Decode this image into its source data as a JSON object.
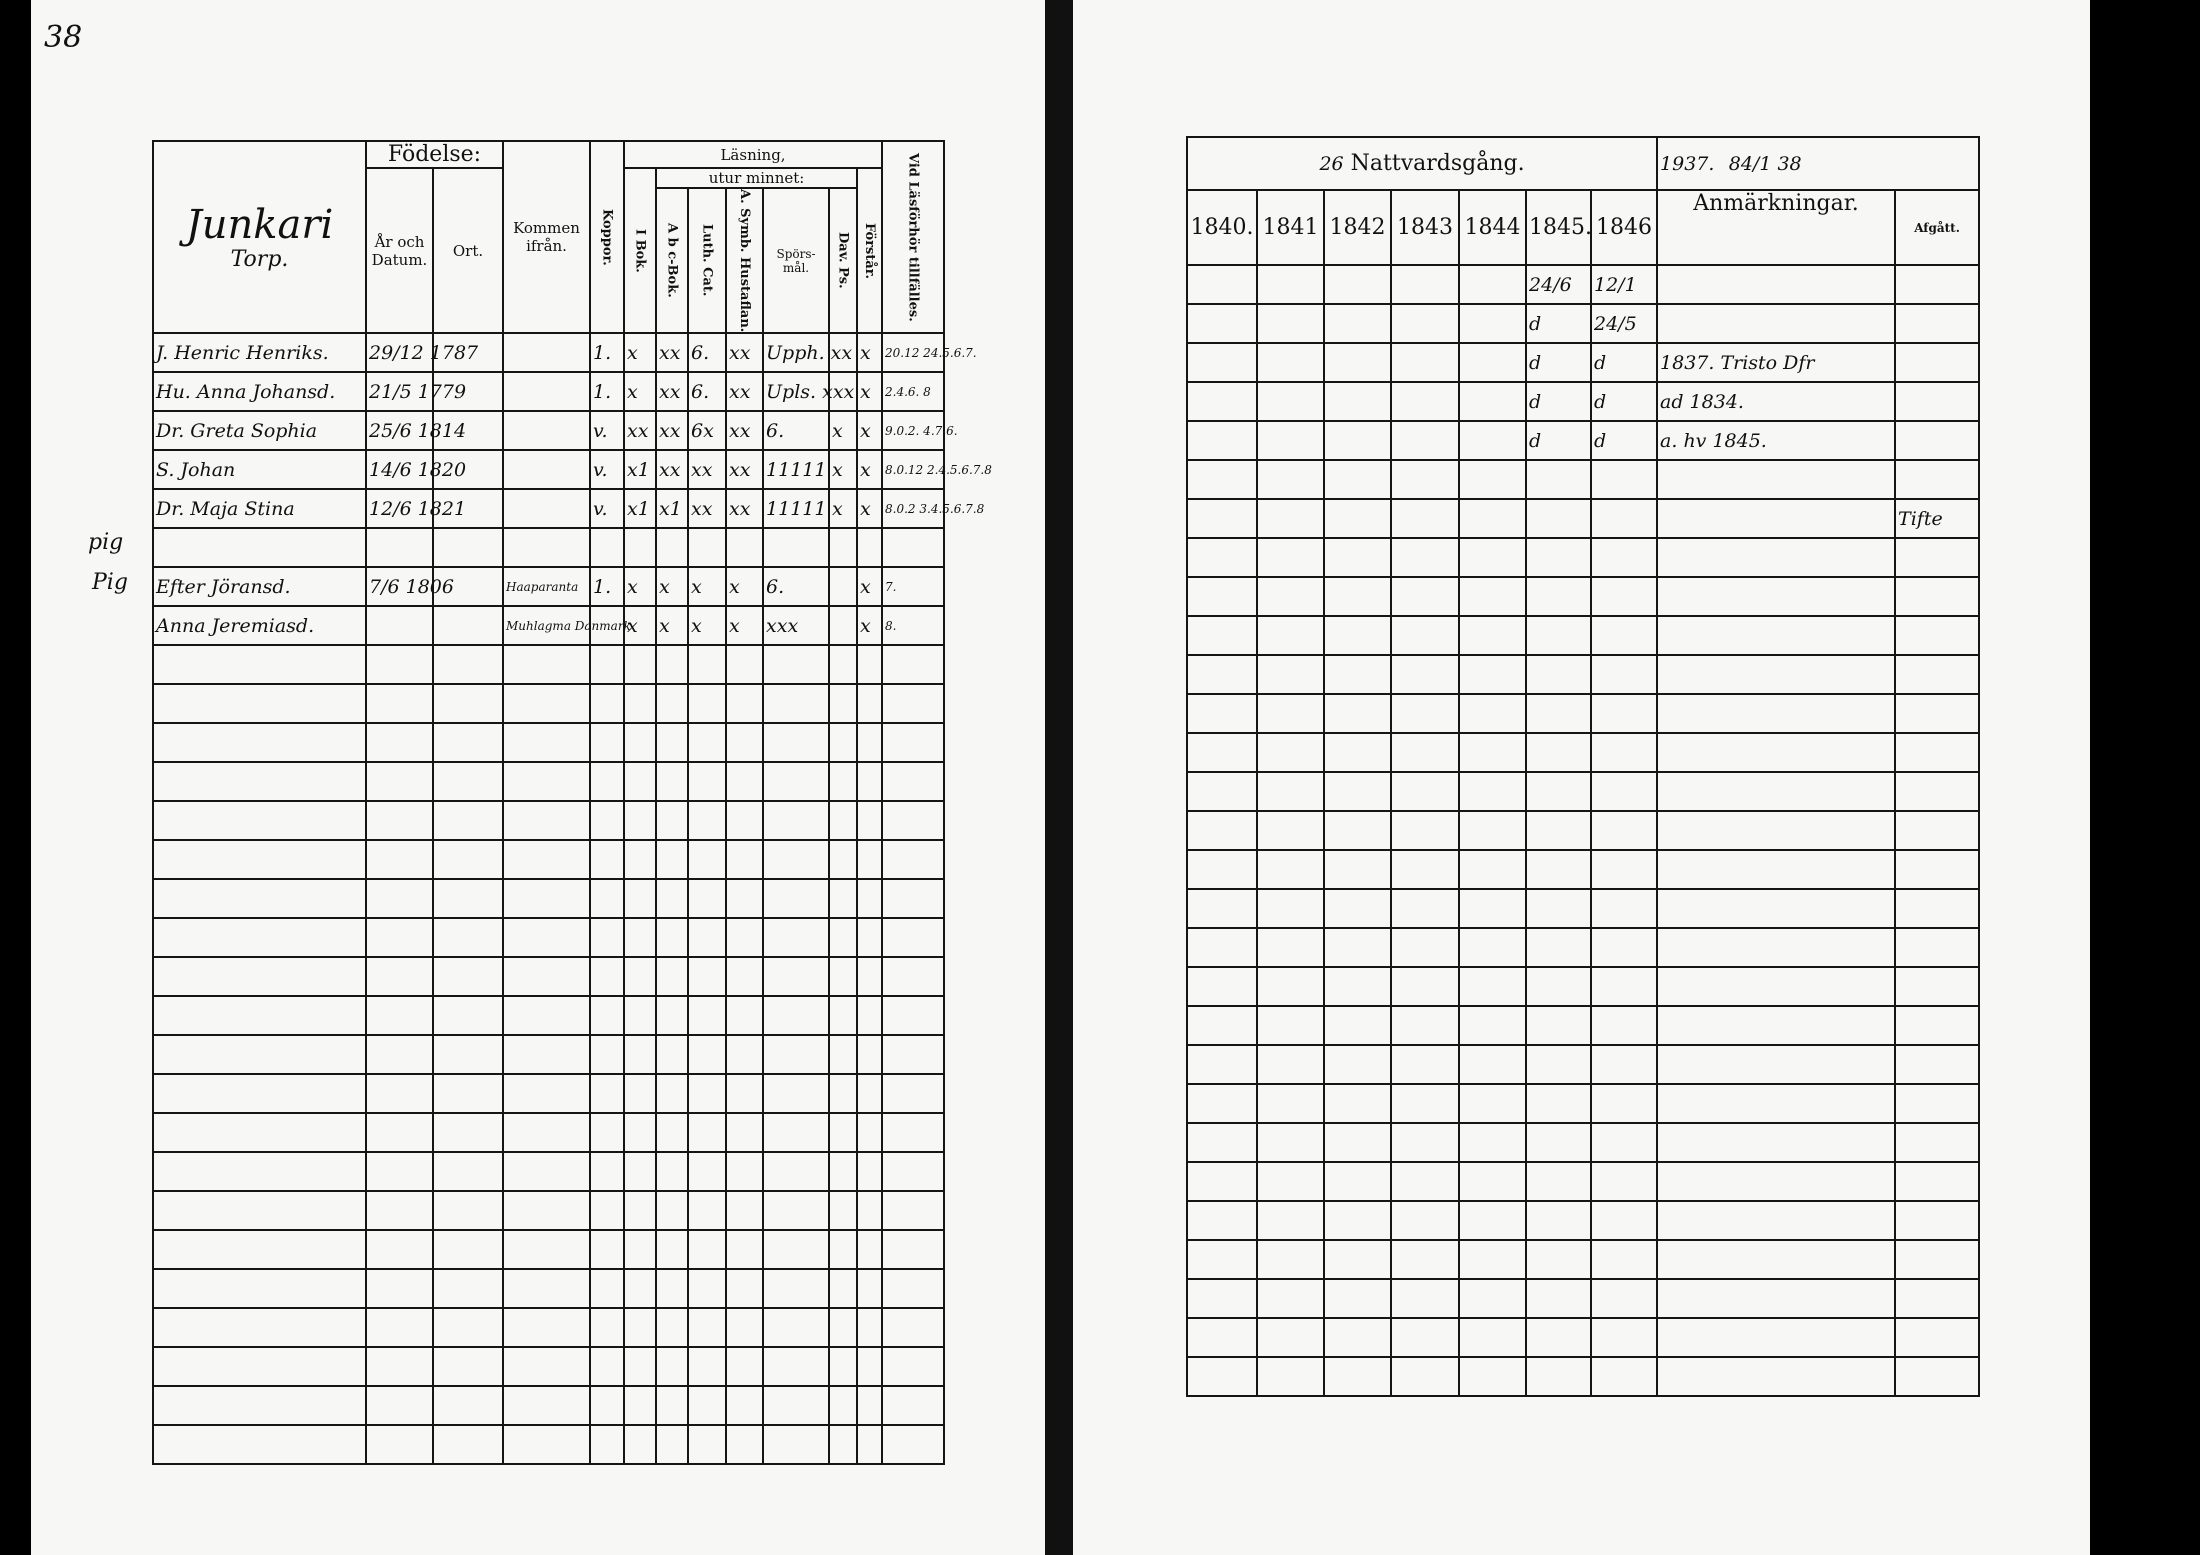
{
  "page_number": "38",
  "left": {
    "parish": "Junkari",
    "parish_sub": "Torp.",
    "headers": {
      "fodelse": "Födelse:",
      "ar_datum": "År och Datum.",
      "ort": "Ort.",
      "kommen": "Kommen ifrån.",
      "koppor": "Koppor.",
      "lasning": "Läsning,",
      "utur_minnet": "utur minnet:",
      "i_bok": "I Bok.",
      "abc": "A b c-Bok.",
      "luth": "Luth. Cat.",
      "symb": "A. Symb. Hustaflan.",
      "spors": "Spörs-mål.",
      "dav": "Dav. Ps.",
      "forstar": "Förstår.",
      "lasforhor": "Vid Läsförhör tillfälles."
    },
    "rows": [
      [
        "J. Henric Henriks.",
        "29/12 1787",
        "",
        "",
        "1.",
        "x",
        "xx",
        "6.",
        "xx",
        "Upph. xx",
        "",
        "x",
        "20.12 24.5.6.7."
      ],
      [
        "Hu. Anna Johansd.",
        "21/5 1779",
        "",
        "",
        "1.",
        "x",
        "xx",
        "6.",
        "xx",
        "Upls. xxx",
        "",
        "x",
        "2.4.6. 8"
      ],
      [
        "Dr. Greta Sophia",
        "25/6 1814",
        "",
        "",
        "v.",
        "xx",
        "xx",
        "6x",
        "xx",
        "6.",
        "x",
        "x",
        "9.0.2. 4.7.6."
      ],
      [
        "S. Johan",
        "14/6 1820",
        "",
        "",
        "v.",
        "x1",
        "xx",
        "xx",
        "xx",
        "11111",
        "x",
        "x",
        "8.0.12 2.4.5.6.7.8"
      ],
      [
        "Dr. Maja Stina",
        "12/6 1821",
        "",
        "",
        "v.",
        "x1",
        "x1",
        "xx",
        "xx",
        "11111",
        "x",
        "x",
        "8.0.2 3.4.5.6.7.8"
      ],
      [
        "",
        "",
        "",
        "",
        "",
        "",
        "",
        "",
        "",
        "",
        "",
        "",
        ""
      ],
      [
        "Efter Jöransd.",
        "7/6 1806",
        "",
        "Haaparanta",
        "1.",
        "x",
        "x",
        "x",
        "x",
        "6.",
        "",
        "x",
        "7."
      ],
      [
        "Anna Jeremiasd.",
        "",
        "",
        "Muhlagma Danmark",
        "",
        "x",
        "x",
        "x",
        "x",
        "xxx",
        "",
        "x",
        "8."
      ]
    ],
    "margin_notes": [
      "pig",
      "Pig"
    ]
  },
  "right": {
    "title": "Nattvardsgång.",
    "title_note": "26",
    "note_a": "1937.",
    "note_b": "84/1 38",
    "years": [
      "1840.",
      "1841",
      "1842",
      "1843",
      "1844",
      "1845.",
      "1846"
    ],
    "anm": "Anmärkningar.",
    "afgatt": "Afgått.",
    "rows": [
      [
        "",
        "",
        "",
        "",
        "",
        "24/6",
        "12/1",
        "",
        ""
      ],
      [
        "",
        "",
        "",
        "",
        "",
        "d",
        "24/5",
        "",
        ""
      ],
      [
        "",
        "",
        "",
        "",
        "",
        "d",
        "d",
        "1837. Tristo Dfr",
        "",
        ""
      ],
      [
        "",
        "",
        "",
        "",
        "",
        "d",
        "d",
        "ad 1834.",
        ""
      ],
      [
        "",
        "",
        "",
        "",
        "",
        "d",
        "d",
        "a. hv 1845.",
        ""
      ],
      [
        "",
        "",
        "",
        "",
        "",
        "",
        "",
        "",
        ""
      ],
      [
        "",
        "",
        "",
        "",
        "",
        "",
        "",
        "",
        "Tifte"
      ]
    ]
  }
}
